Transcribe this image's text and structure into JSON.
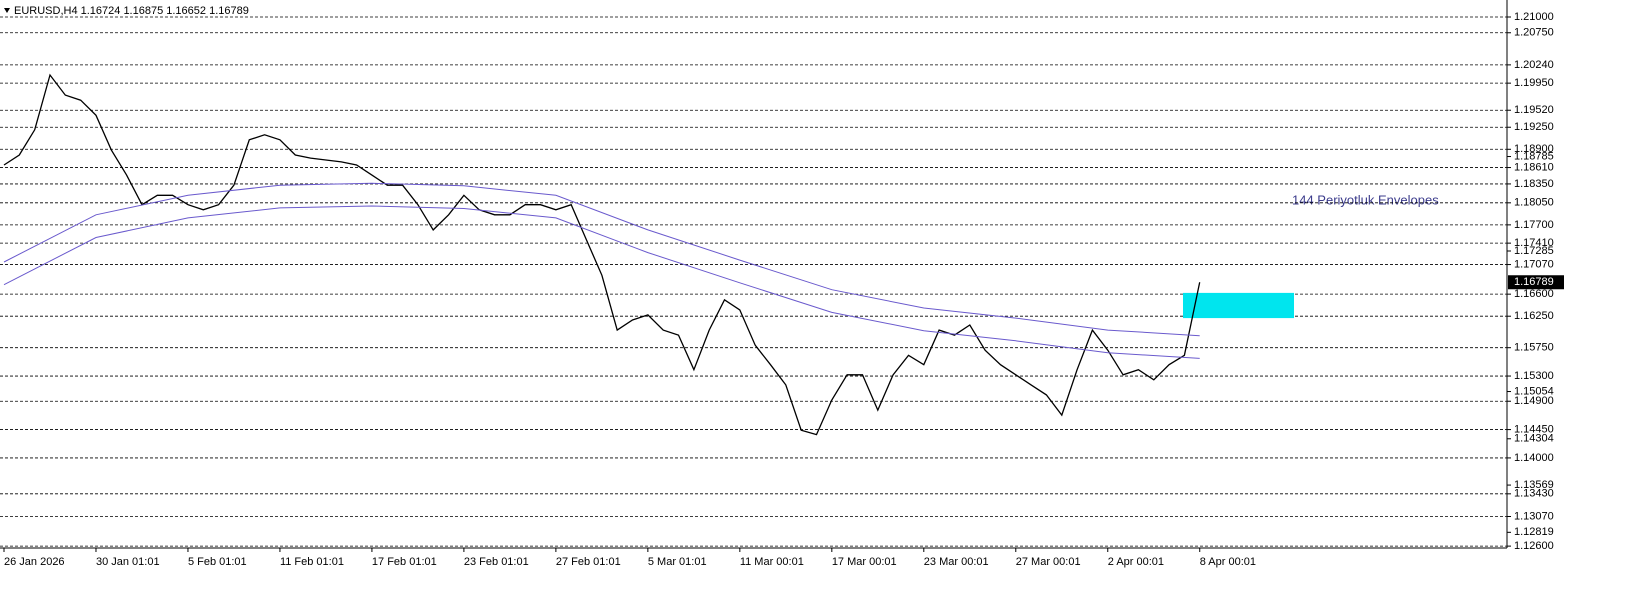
{
  "chart_data": {
    "type": "line",
    "title": "EURUSD,H4  1.16724 1.16875 1.16652 1.16789",
    "annotation": "144 Periyotluk Envelopes",
    "categories": [
      "26 Jan 2026",
      null,
      null,
      null,
      null,
      null,
      "30 Jan 01:01",
      null,
      null,
      null,
      null,
      null,
      "5 Feb 01:01",
      null,
      null,
      null,
      null,
      null,
      "11 Feb 01:01",
      null,
      null,
      null,
      null,
      null,
      "17 Feb 01:01",
      null,
      null,
      null,
      null,
      null,
      "23 Feb 01:01",
      null,
      null,
      null,
      null,
      null,
      "27 Feb 01:01",
      null,
      null,
      null,
      null,
      null,
      "5 Mar 01:01",
      null,
      null,
      null,
      null,
      null,
      "11 Mar 00:01",
      null,
      null,
      null,
      null,
      null,
      "17 Mar 00:01",
      null,
      null,
      null,
      null,
      null,
      "23 Mar 00:01",
      null,
      null,
      null,
      null,
      null,
      "27 Mar 00:01",
      null,
      null,
      null,
      null,
      null,
      "2 Apr 00:01",
      null,
      null,
      null,
      null,
      null,
      "8 Apr 00:01"
    ],
    "series": [
      {
        "name": "EURUSD",
        "color": "#000000",
        "values": [
          1.1865,
          1.1881,
          1.1921,
          1.2008,
          1.1976,
          1.1968,
          1.1944,
          1.1889,
          1.1849,
          1.1802,
          1.1817,
          1.1817,
          1.1802,
          1.1794,
          1.1802,
          1.1833,
          1.1905,
          1.1913,
          1.1905,
          1.1881,
          1.1876,
          1.1873,
          1.187,
          1.1865,
          1.1849,
          1.1833,
          1.1833,
          1.1802,
          1.1762,
          1.1786,
          1.1817,
          1.1794,
          1.1786,
          1.1786,
          1.1802,
          1.1802,
          1.1794,
          1.1802,
          1.1746,
          1.169,
          1.1603,
          1.1619,
          1.1627,
          1.1603,
          1.1595,
          1.154,
          1.1603,
          1.1651,
          1.1635,
          1.1579,
          1.1548,
          1.1516,
          1.1444,
          1.1437,
          1.1492,
          1.1532,
          1.1532,
          1.1476,
          1.1532,
          1.1563,
          1.1548,
          1.1603,
          1.1595,
          1.1611,
          1.1571,
          1.1548,
          1.1532,
          1.1516,
          1.15,
          1.1468,
          1.154,
          1.1603,
          1.1571,
          1.1532,
          1.154,
          1.1524,
          1.1548,
          1.1563,
          1.1679
        ]
      },
      {
        "name": "Envelopes Upper",
        "color": "#6a5acd",
        "x": [
          0,
          6,
          12,
          18,
          24,
          30,
          36,
          42,
          48,
          54,
          60,
          66,
          72,
          78
        ],
        "values": [
          1.1711,
          1.1786,
          1.1817,
          1.1833,
          1.1836,
          1.1832,
          1.1817,
          1.1762,
          1.1714,
          1.1667,
          1.1638,
          1.1622,
          1.1603,
          1.1594
        ]
      },
      {
        "name": "Envelopes Lower",
        "color": "#6a5acd",
        "x": [
          0,
          6,
          12,
          18,
          24,
          30,
          36,
          42,
          48,
          54,
          60,
          66,
          72,
          78
        ],
        "values": [
          1.1675,
          1.175,
          1.1781,
          1.1797,
          1.18,
          1.1796,
          1.1781,
          1.1726,
          1.1678,
          1.1631,
          1.1602,
          1.1586,
          1.1567,
          1.1558
        ]
      }
    ],
    "zone": {
      "low": 1.1622,
      "high": 1.1662,
      "color": "#00e5ee"
    },
    "ylim": [
      1.1257,
      1.2127
    ],
    "grid": true,
    "yticks": [
      {
        "value": 1.21,
        "label": "1.21000"
      },
      {
        "value": 1.2075,
        "label": "1.20750"
      },
      {
        "value": 1.2024,
        "label": "1.20240"
      },
      {
        "value": 1.1995,
        "label": "1.19950"
      },
      {
        "value": 1.1952,
        "label": "1.19520"
      },
      {
        "value": 1.1925,
        "label": "1.19250"
      },
      {
        "value": 1.189,
        "label": "1.18900"
      },
      {
        "value": 1.1861,
        "label": "1.18610"
      },
      {
        "value": 1.1835,
        "label": "1.18350"
      },
      {
        "value": 1.1805,
        "label": "1.18050"
      },
      {
        "value": 1.177,
        "label": "1.17700"
      },
      {
        "value": 1.1741,
        "label": "1.17410"
      },
      {
        "value": 1.1707,
        "label": "1.17070"
      },
      {
        "value": 1.166,
        "label": "1.16600"
      },
      {
        "value": 1.1625,
        "label": "1.16250"
      },
      {
        "value": 1.1575,
        "label": "1.15750"
      },
      {
        "value": 1.153,
        "label": "1.15300"
      },
      {
        "value": 1.149,
        "label": "1.14900"
      },
      {
        "value": 1.1445,
        "label": "1.14450"
      },
      {
        "value": 1.14,
        "label": "1.14000"
      },
      {
        "value": 1.1343,
        "label": "1.13430"
      },
      {
        "value": 1.1307,
        "label": "1.13070"
      },
      {
        "value": 1.126,
        "label": "1.12600"
      }
    ],
    "price_scale_labels": [
      1.18785,
      1.17285,
      1.15054,
      1.14304,
      1.13569,
      1.12819
    ],
    "current_price": {
      "value": 1.16789,
      "label": "1.16789"
    }
  }
}
